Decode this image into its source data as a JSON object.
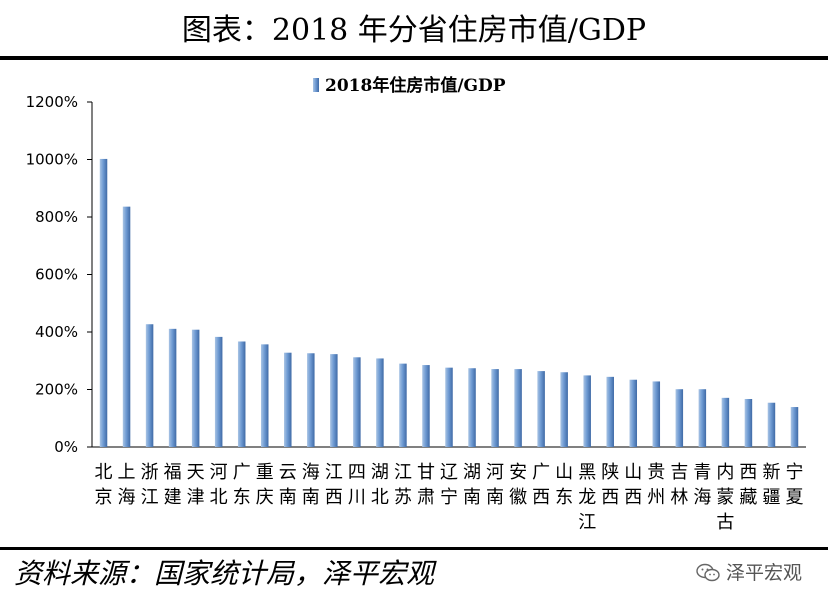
{
  "header": {
    "title": "图表：2018 年分省住房市值/GDP"
  },
  "footer": {
    "source": "资料来源：国家统计局，泽平宏观",
    "watermark": "泽平宏观"
  },
  "colors": {
    "bar_light": "#a9c4e4",
    "bar_mid": "#6f9bd3",
    "bar_dark": "#3f6aa6",
    "axis": "#000000"
  },
  "chart_data": {
    "type": "bar",
    "title": "",
    "legend": "2018年住房市值/GDP",
    "legend_position": "top-center",
    "xlabel": "",
    "ylabel": "",
    "ylim": [
      0,
      1200
    ],
    "yticks": [
      0,
      200,
      400,
      600,
      800,
      1000,
      1200
    ],
    "ytick_labels": [
      "0%",
      "200%",
      "400%",
      "600%",
      "800%",
      "1000%",
      "1200%"
    ],
    "categories": [
      [
        "北",
        "京"
      ],
      [
        "上",
        "海"
      ],
      [
        "浙",
        "江"
      ],
      [
        "福",
        "建"
      ],
      [
        "天",
        "津"
      ],
      [
        "河",
        "北"
      ],
      [
        "广",
        "东"
      ],
      [
        "重",
        "庆"
      ],
      [
        "云",
        "南"
      ],
      [
        "海",
        "南"
      ],
      [
        "江",
        "西"
      ],
      [
        "四",
        "川"
      ],
      [
        "湖",
        "北"
      ],
      [
        "江",
        "苏"
      ],
      [
        "甘",
        "肃"
      ],
      [
        "辽",
        "宁"
      ],
      [
        "湖",
        "南"
      ],
      [
        "河",
        "南"
      ],
      [
        "安",
        "徽"
      ],
      [
        "广",
        "西"
      ],
      [
        "山",
        "东"
      ],
      [
        "黑",
        "龙",
        "江"
      ],
      [
        "陕",
        "西"
      ],
      [
        "山",
        "西"
      ],
      [
        "贵",
        "州"
      ],
      [
        "吉",
        "林"
      ],
      [
        "青",
        "海"
      ],
      [
        "内",
        "蒙",
        "古"
      ],
      [
        "西",
        "藏"
      ],
      [
        "新",
        "疆"
      ],
      [
        "宁",
        "夏"
      ]
    ],
    "values": [
      1002,
      836,
      427,
      411,
      408,
      383,
      367,
      357,
      328,
      326,
      323,
      312,
      308,
      290,
      285,
      276,
      274,
      271,
      271,
      264,
      260,
      249,
      244,
      234,
      228,
      201,
      201,
      171,
      167,
      154,
      139
    ]
  }
}
